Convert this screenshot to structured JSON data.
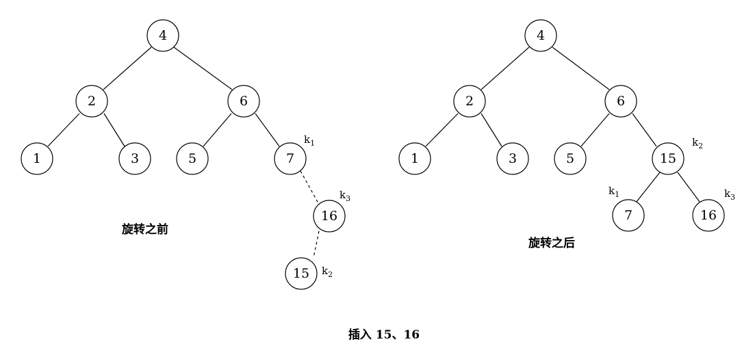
{
  "captions": {
    "before": "旋转之前",
    "after": "旋转之后",
    "figure": "插入 15、16"
  },
  "k_labels": {
    "k1": "k",
    "k1_sub": "1",
    "k2": "k",
    "k2_sub": "2",
    "k3": "k",
    "k3_sub": "3"
  },
  "tree_before": {
    "nodes": [
      "4",
      "2",
      "6",
      "1",
      "3",
      "5",
      "7",
      "16",
      "15"
    ],
    "edges": [
      [
        "4",
        "2"
      ],
      [
        "4",
        "6"
      ],
      [
        "2",
        "1"
      ],
      [
        "2",
        "3"
      ],
      [
        "6",
        "5"
      ],
      [
        "6",
        "7"
      ]
    ],
    "dashed_edges": [
      [
        "7",
        "16"
      ],
      [
        "16",
        "15"
      ]
    ],
    "labels": {
      "7": "k1",
      "16": "k3",
      "15": "k2"
    }
  },
  "tree_after": {
    "nodes": [
      "4",
      "2",
      "6",
      "1",
      "3",
      "5",
      "15",
      "7",
      "16"
    ],
    "edges": [
      [
        "4",
        "2"
      ],
      [
        "4",
        "6"
      ],
      [
        "2",
        "1"
      ],
      [
        "2",
        "3"
      ],
      [
        "6",
        "5"
      ],
      [
        "6",
        "15"
      ],
      [
        "15",
        "7"
      ],
      [
        "15",
        "16"
      ]
    ],
    "dashed_edges": [],
    "labels": {
      "15": "k2",
      "7": "k1",
      "16": "k3"
    }
  }
}
